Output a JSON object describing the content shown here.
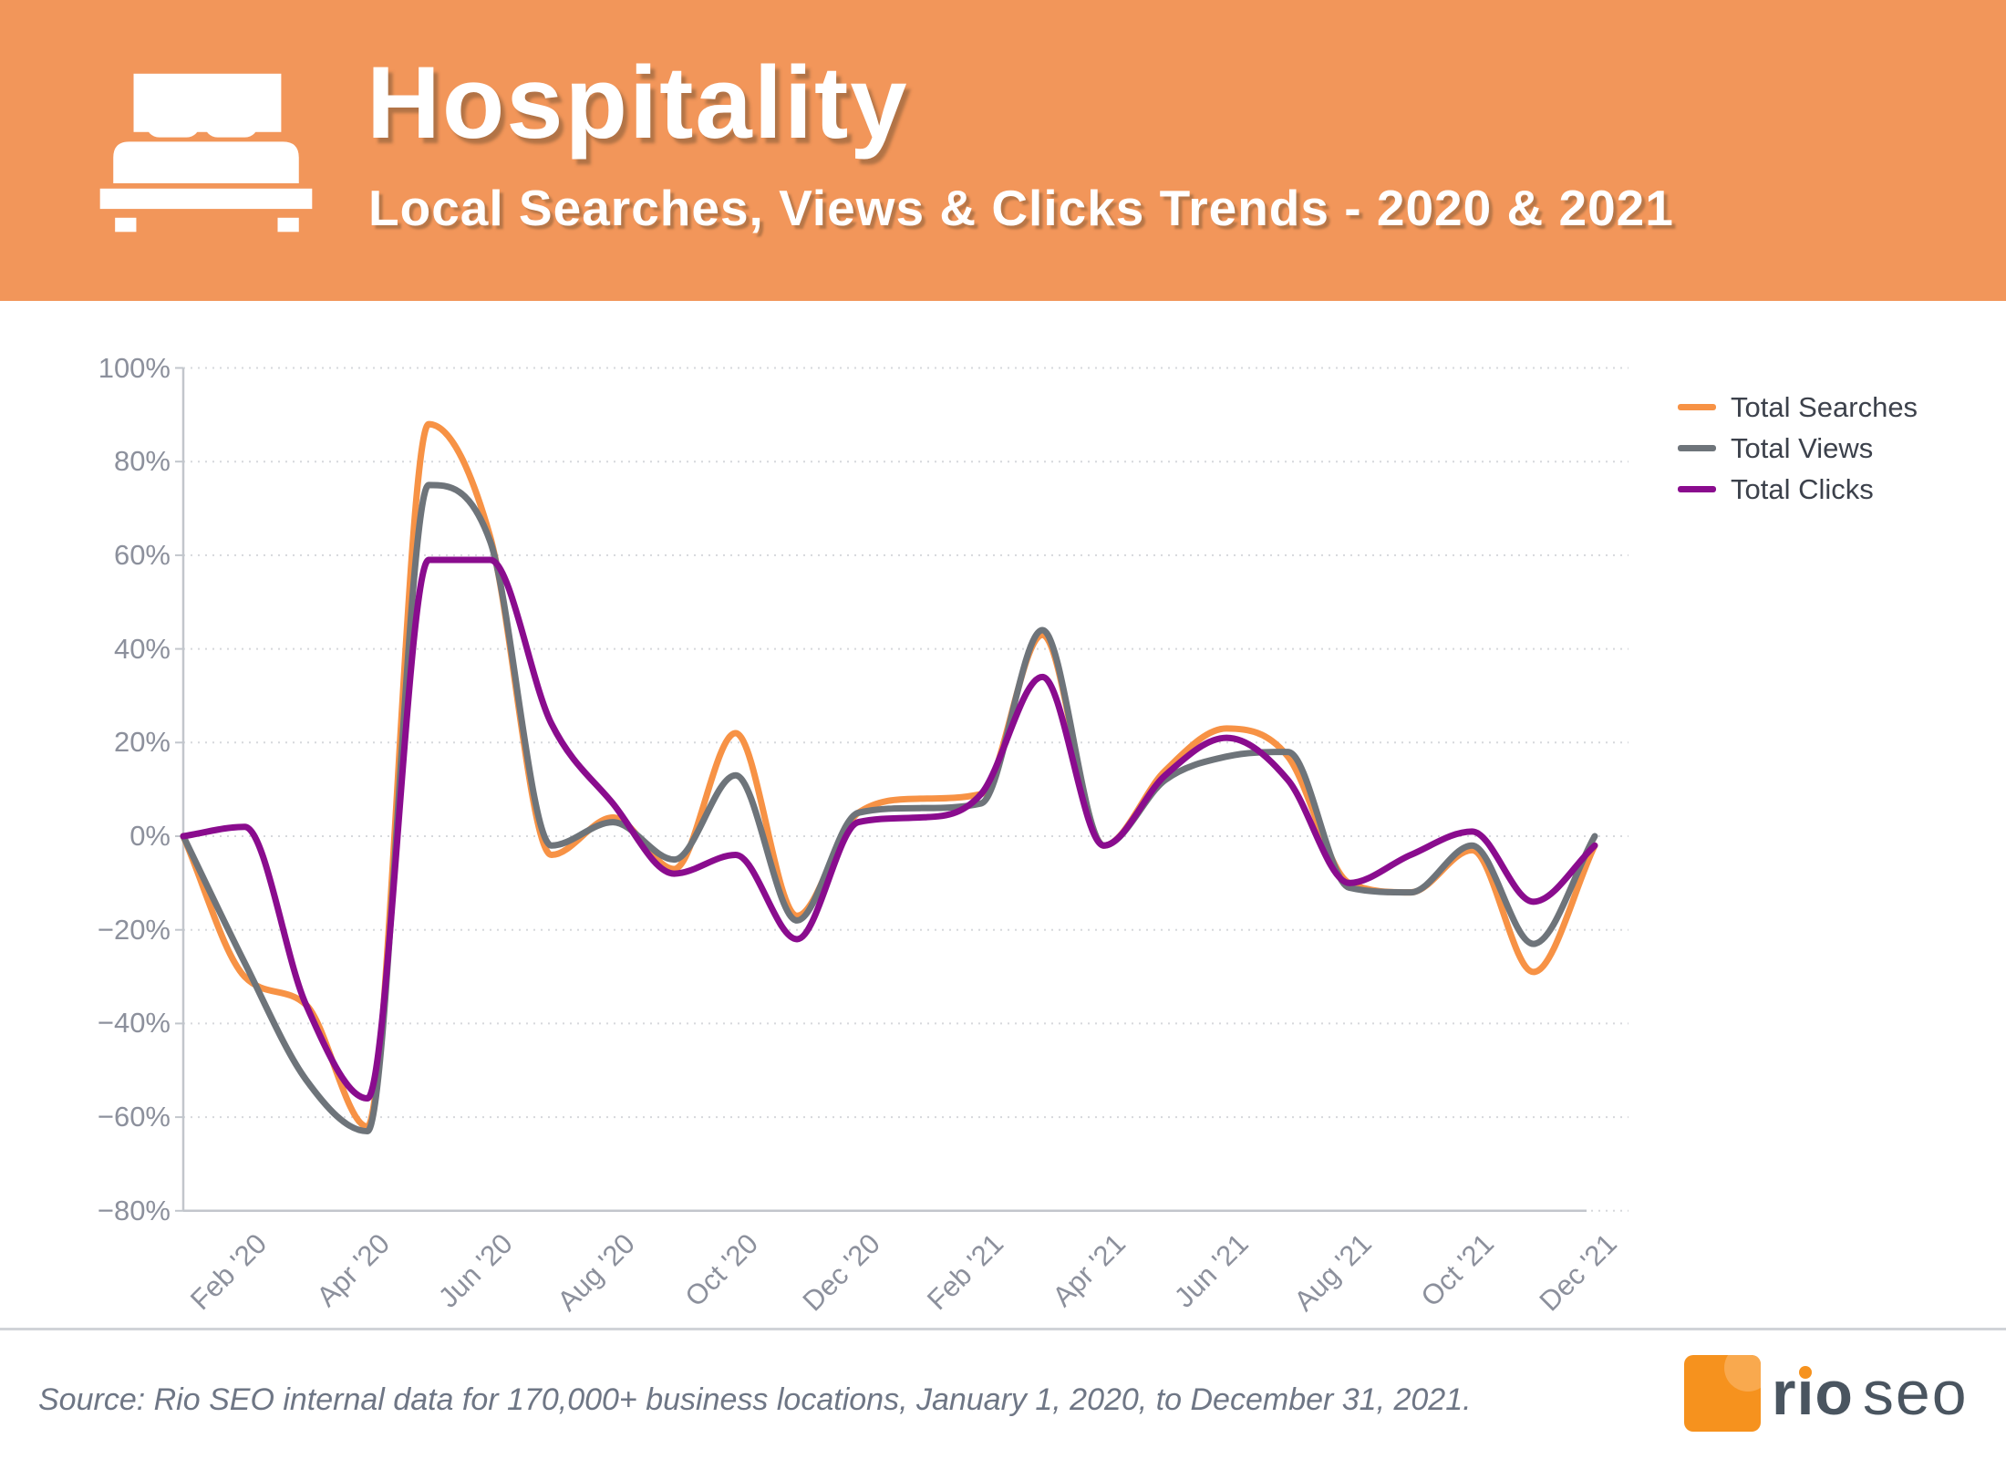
{
  "header": {
    "title": "Hospitality",
    "subtitle": "Local Searches, Views & Clicks Trends - 2020 & 2021",
    "bg_color": "#F2965A",
    "icon": "bed-icon"
  },
  "legend": [
    {
      "label": "Total Searches",
      "color": "#F79245"
    },
    {
      "label": "Total Views",
      "color": "#6E747A"
    },
    {
      "label": "Total Clicks",
      "color": "#8A0C8E"
    }
  ],
  "chart_data": {
    "type": "line",
    "title": "Hospitality Local Searches, Views & Clicks Trends - 2020 & 2021",
    "xlabel": "",
    "ylabel": "",
    "ylim": [
      -80,
      100
    ],
    "grid": "horizontal dotted",
    "legend_position": "top-right",
    "x": [
      "Jan '20",
      "Feb '20",
      "Mar '20",
      "Apr '20",
      "May '20",
      "Jun '20",
      "Jul '20",
      "Aug '20",
      "Sep '20",
      "Oct '20",
      "Nov '20",
      "Dec '20",
      "Jan '21",
      "Feb '21",
      "Mar '21",
      "Apr '21",
      "May '21",
      "Jun '21",
      "Jul '21",
      "Aug '21",
      "Sep '21",
      "Oct '21",
      "Nov '21",
      "Dec '21"
    ],
    "x_tick_labels": [
      "Feb '20",
      "Apr '20",
      "Jun '20",
      "Aug '20",
      "Oct '20",
      "Dec '20",
      "Feb '21",
      "Apr '21",
      "Jun '21",
      "Aug '21",
      "Oct '21",
      "Dec '21"
    ],
    "x_tick_indices": [
      1,
      3,
      5,
      7,
      9,
      11,
      13,
      15,
      17,
      19,
      21,
      23
    ],
    "yticks": [
      100,
      80,
      60,
      40,
      20,
      0,
      -20,
      -40,
      -60,
      -80
    ],
    "ytick_labels": [
      "100%",
      "80%",
      "60%",
      "40%",
      "20%",
      "0%",
      "−20%",
      "−40%",
      "−60%",
      "−80%"
    ],
    "unit": "percent",
    "series": [
      {
        "name": "Total Searches",
        "color": "#F79245",
        "values": [
          0,
          -30,
          -36,
          -62,
          88,
          64,
          -4,
          4,
          -7,
          22,
          -17,
          5,
          8,
          9,
          43,
          -2,
          14,
          23,
          17,
          -10,
          -12,
          -3,
          -29,
          -2
        ]
      },
      {
        "name": "Total Views",
        "color": "#6E747A",
        "values": [
          0,
          -27,
          -52,
          -63,
          75,
          63,
          -2,
          3,
          -5,
          13,
          -18,
          5,
          6,
          7,
          44,
          -2,
          12,
          17,
          18,
          -11,
          -12,
          -2,
          -23,
          0
        ]
      },
      {
        "name": "Total Clicks",
        "color": "#8A0C8E",
        "values": [
          0,
          2,
          -36,
          -56,
          59,
          59,
          24,
          7,
          -8,
          -4,
          -22,
          3,
          4,
          9,
          34,
          -2,
          13,
          21,
          12,
          -10,
          -4,
          1,
          -14,
          -2
        ]
      }
    ]
  },
  "footer": {
    "source": "Source: Rio SEO internal data for 170,000+ business locations, January 1, 2020, to December 31, 2021.",
    "logo": {
      "text_bold": "rıo",
      "text_light": "seo"
    }
  }
}
